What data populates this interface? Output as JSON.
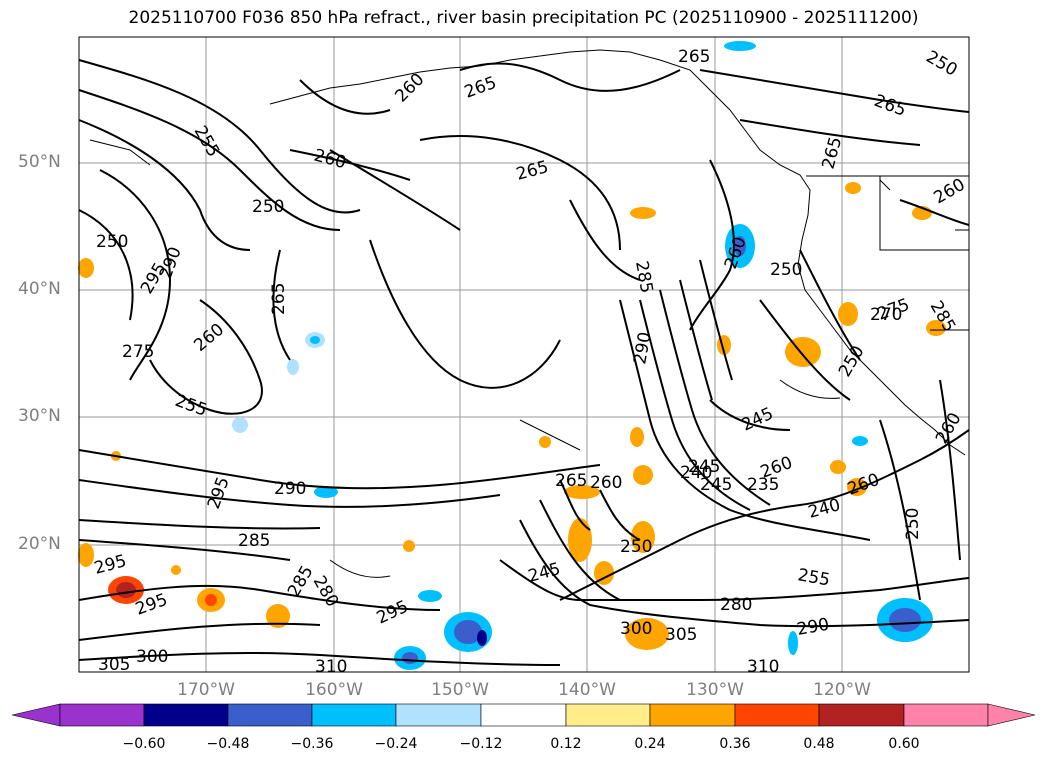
{
  "title": "2025110700 F036 850 hPa refract., river basin precipitation PC (2025110900 - 2025111200)",
  "lat_labels": [
    "50°N",
    "40°N",
    "30°N",
    "20°N"
  ],
  "lon_labels": [
    "170°W",
    "160°W",
    "150°W",
    "140°W",
    "130°W",
    "120°W"
  ],
  "colorbar": {
    "ticks": [
      "−0.60",
      "−0.48",
      "−0.36",
      "−0.24",
      "−0.12",
      "0.12",
      "0.24",
      "0.36",
      "0.48",
      "0.60"
    ],
    "colors": [
      "#9a32cd",
      "#00008b",
      "#3a5fcd",
      "#00bfff",
      "#b0e2ff",
      "#ffffff",
      "#ffec8b",
      "#ffa500",
      "#ff4500",
      "#b22222",
      "#ff82ab"
    ]
  },
  "contour_labels": [
    "265",
    "260",
    "265",
    "250",
    "260",
    "265",
    "265",
    "260",
    "255",
    "250",
    "265",
    "250",
    "260",
    "275",
    "295",
    "290",
    "265",
    "260",
    "275",
    "255",
    "285",
    "290",
    "285",
    "250",
    "245",
    "270",
    "260",
    "260",
    "245",
    "235",
    "260",
    "240",
    "240",
    "250",
    "245",
    "290",
    "295",
    "285",
    "285",
    "280",
    "295",
    "265",
    "260",
    "250",
    "245",
    "280",
    "255",
    "290",
    "300",
    "305",
    "310",
    "310",
    "300",
    "305",
    "295",
    "295",
    "250"
  ],
  "map": {
    "features": [
      "coastline",
      "grid",
      "contours",
      "precip-shading"
    ],
    "ocean_color": "#ffffff"
  }
}
